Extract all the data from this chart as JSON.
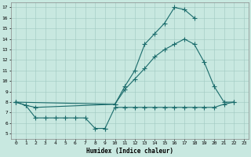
{
  "xlabel": "Humidex (Indice chaleur)",
  "bg_color": "#c8e8e0",
  "grid_color": "#a0c8c0",
  "line_color": "#1a6b6b",
  "xlim": [
    -0.5,
    23.5
  ],
  "ylim": [
    4.5,
    17.5
  ],
  "yticks": [
    5,
    6,
    7,
    8,
    9,
    10,
    11,
    12,
    13,
    14,
    15,
    16,
    17
  ],
  "xticks": [
    0,
    1,
    2,
    3,
    4,
    5,
    6,
    7,
    8,
    9,
    10,
    11,
    12,
    13,
    14,
    15,
    16,
    17,
    18,
    19,
    20,
    21,
    22,
    23
  ],
  "line1_x": [
    0,
    1,
    2,
    10,
    11,
    12,
    13,
    14,
    15,
    16,
    17,
    18
  ],
  "line1_y": [
    8.0,
    7.7,
    7.5,
    7.8,
    9.5,
    11.0,
    13.5,
    14.5,
    15.5,
    17.0,
    16.8,
    16.0
  ],
  "line2_x": [
    0,
    10,
    11,
    12,
    13,
    14,
    15,
    16,
    17,
    18,
    19,
    20,
    21,
    22
  ],
  "line2_y": [
    8.0,
    7.8,
    9.2,
    10.2,
    11.2,
    12.3,
    13.0,
    13.5,
    14.0,
    13.5,
    11.8,
    9.5,
    8.0,
    8.0
  ],
  "line3_x": [
    0,
    1,
    2,
    3,
    4,
    5,
    6,
    7,
    8,
    9
  ],
  "line3_y": [
    8.0,
    7.7,
    6.5,
    6.5,
    6.5,
    6.5,
    6.5,
    6.5,
    5.5,
    5.5
  ],
  "line3b_x": [
    9,
    10,
    11,
    12,
    13,
    14,
    15,
    16,
    17,
    18,
    19,
    20,
    21,
    22
  ],
  "line3b_y": [
    5.5,
    7.5,
    7.5,
    7.5,
    7.5,
    7.5,
    7.5,
    7.5,
    7.5,
    7.5,
    7.5,
    7.5,
    7.8,
    8.0
  ]
}
